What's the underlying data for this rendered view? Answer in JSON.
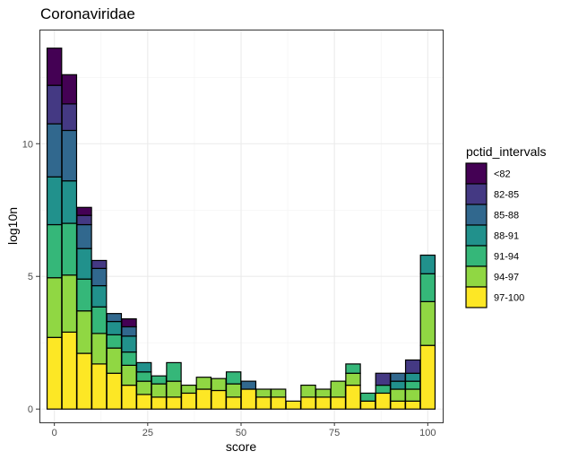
{
  "chart_data": {
    "type": "bar",
    "stacked": true,
    "title": "Coronaviridae",
    "xlabel": "score",
    "ylabel": "log10n",
    "xlim": [
      -4,
      104
    ],
    "ylim": [
      -0.5,
      14.3
    ],
    "x_ticks": [
      0,
      25,
      50,
      75,
      100
    ],
    "y_ticks": [
      0,
      5,
      10
    ],
    "x_tick_labels": [
      "0",
      "25",
      "50",
      "75",
      "100"
    ],
    "y_tick_labels": [
      "0",
      "5",
      "10"
    ],
    "bar_width": 3.9,
    "grid": true,
    "legend": {
      "title": "pctid_intervals",
      "position": "right",
      "entries": [
        "<82",
        "82-85",
        "85-88",
        "88-91",
        "91-94",
        "94-97",
        "97-100"
      ]
    },
    "colors": {
      "<82": "#440154",
      "82-85": "#443983",
      "85-88": "#31688e",
      "88-91": "#21918c",
      "91-94": "#35b779",
      "94-97": "#90d743",
      "97-100": "#fde725"
    },
    "x": [
      0,
      4,
      8,
      12,
      16,
      20,
      24,
      28,
      32,
      36,
      40,
      44,
      48,
      52,
      56,
      60,
      64,
      68,
      72,
      76,
      80,
      84,
      88,
      92,
      96,
      100
    ],
    "series": [
      {
        "name": "97-100",
        "values": [
          2.7,
          2.9,
          2.1,
          1.7,
          1.35,
          0.9,
          0.55,
          0.45,
          0.45,
          0.6,
          0.75,
          0.7,
          0.45,
          0.75,
          0.45,
          0.45,
          0.3,
          0.45,
          0.45,
          0.45,
          0.9,
          0.3,
          0.6,
          0.3,
          0.3,
          2.4
        ]
      },
      {
        "name": "94-97",
        "values": [
          2.25,
          2.15,
          1.6,
          1.15,
          0.95,
          0.75,
          0.5,
          0.5,
          0.6,
          0.3,
          0.45,
          0.45,
          0.5,
          0,
          0.3,
          0.3,
          0,
          0.45,
          0.3,
          0.6,
          0.45,
          0,
          0,
          0.45,
          0.45,
          1.65
        ]
      },
      {
        "name": "91-94",
        "values": [
          2.0,
          1.95,
          1.2,
          1.0,
          0.5,
          0.5,
          0.35,
          0.3,
          0.7,
          0,
          0,
          0,
          0.45,
          0,
          0,
          0,
          0,
          0,
          0,
          0,
          0.35,
          0.3,
          0.3,
          0,
          0.3,
          1.05
        ]
      },
      {
        "name": "88-91",
        "values": [
          1.8,
          1.6,
          1.15,
          0.8,
          0.5,
          0.6,
          0.35,
          0,
          0,
          0,
          0,
          0,
          0,
          0,
          0,
          0,
          0,
          0,
          0,
          0,
          0,
          0,
          0,
          0.3,
          0.3,
          0.7
        ]
      },
      {
        "name": "85-88",
        "values": [
          2.0,
          1.9,
          0.9,
          0.65,
          0.3,
          0.35,
          0,
          0,
          0,
          0,
          0,
          0,
          0,
          0.3,
          0,
          0,
          0,
          0,
          0,
          0,
          0,
          0,
          0,
          0.3,
          0,
          0
        ]
      },
      {
        "name": "82-85",
        "values": [
          1.45,
          1.0,
          0.35,
          0.3,
          0,
          0,
          0,
          0,
          0,
          0,
          0,
          0,
          0,
          0,
          0,
          0,
          0,
          0,
          0,
          0,
          0,
          0,
          0.45,
          0,
          0.5,
          0
        ]
      },
      {
        "name": "<82",
        "values": [
          1.4,
          1.1,
          0.3,
          0,
          0,
          0.3,
          0,
          0,
          0,
          0,
          0,
          0,
          0,
          0,
          0,
          0,
          0,
          0,
          0,
          0,
          0,
          0,
          0,
          0,
          0,
          0
        ]
      }
    ]
  }
}
